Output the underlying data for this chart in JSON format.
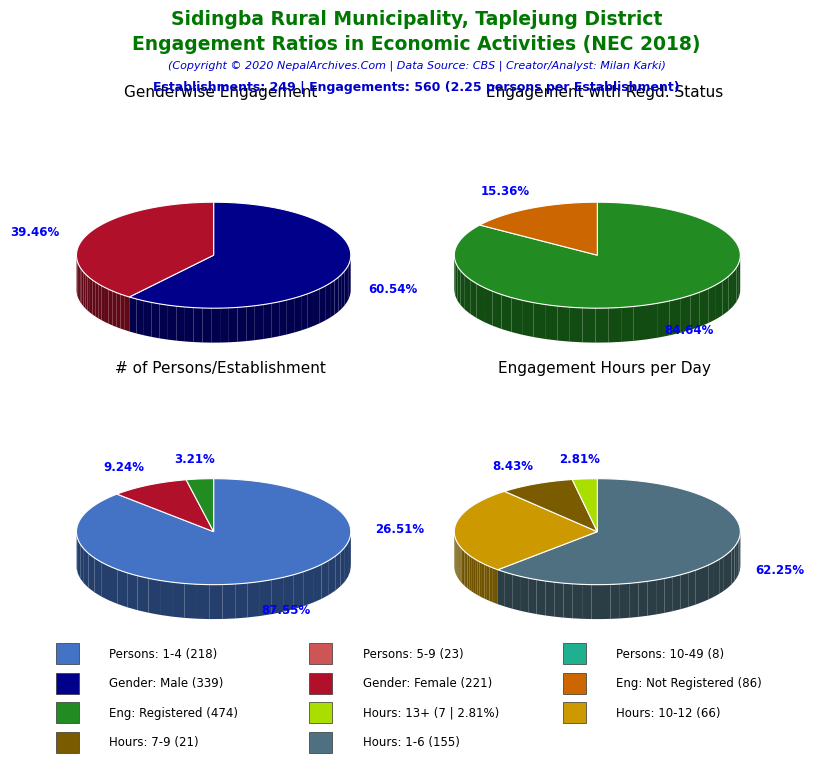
{
  "title_line1": "Sidingba Rural Municipality, Taplejung District",
  "title_line2": "Engagement Ratios in Economic Activities (NEC 2018)",
  "copyright": "(Copyright © 2020 NepalArchives.Com | Data Source: CBS | Creator/Analyst: Milan Karki)",
  "stats": "Establishments: 249 | Engagements: 560 (2.25 persons per Establishment)",
  "title_color": "#007700",
  "copyright_color": "#0000CC",
  "stats_color": "#0000CC",
  "pie1_title": "Genderwise Engagement",
  "pie1_values": [
    60.54,
    39.46
  ],
  "pie1_colors": [
    "#00008B",
    "#B0102A"
  ],
  "pie1_labels": [
    "60.54%",
    "39.46%"
  ],
  "pie1_startangle": 90,
  "pie2_title": "Engagement with Regd. Status",
  "pie2_values": [
    84.64,
    15.36
  ],
  "pie2_colors": [
    "#228B22",
    "#CC6600"
  ],
  "pie2_labels": [
    "84.64%",
    "15.36%"
  ],
  "pie2_startangle": 90,
  "pie3_title": "# of Persons/Establishment",
  "pie3_values": [
    87.55,
    9.24,
    3.21
  ],
  "pie3_colors": [
    "#4472C4",
    "#B0102A",
    "#228B22"
  ],
  "pie3_labels": [
    "87.55%",
    "9.24%",
    "3.21%"
  ],
  "pie3_startangle": 90,
  "pie4_title": "Engagement Hours per Day",
  "pie4_values": [
    62.25,
    26.51,
    8.43,
    2.81
  ],
  "pie4_colors": [
    "#4F7080",
    "#CC9900",
    "#7B5B00",
    "#AADD00"
  ],
  "pie4_labels": [
    "62.25%",
    "26.51%",
    "8.43%",
    "2.81%"
  ],
  "pie4_startangle": 90,
  "label_color": "#0000FF",
  "label_fontsize": 8.5,
  "legend_col1": [
    {
      "label": "Persons: 1-4 (218)",
      "color": "#4472C4"
    },
    {
      "label": "Gender: Male (339)",
      "color": "#00008B"
    },
    {
      "label": "Eng: Registered (474)",
      "color": "#228B22"
    },
    {
      "label": "Hours: 7-9 (21)",
      "color": "#7B5B00"
    }
  ],
  "legend_col2": [
    {
      "label": "Persons: 5-9 (23)",
      "color": "#CD5555"
    },
    {
      "label": "Gender: Female (221)",
      "color": "#B0102A"
    },
    {
      "label": "Hours: 13+ (7 | 2.81%)",
      "color": "#AADD00"
    },
    {
      "label": "Hours: 1-6 (155)",
      "color": "#4F7080"
    }
  ],
  "legend_col3": [
    {
      "label": "Persons: 10-49 (8)",
      "color": "#20B090"
    },
    {
      "label": "Eng: Not Registered (86)",
      "color": "#CC6600"
    },
    {
      "label": "Hours: 10-12 (66)",
      "color": "#CC9900"
    }
  ]
}
